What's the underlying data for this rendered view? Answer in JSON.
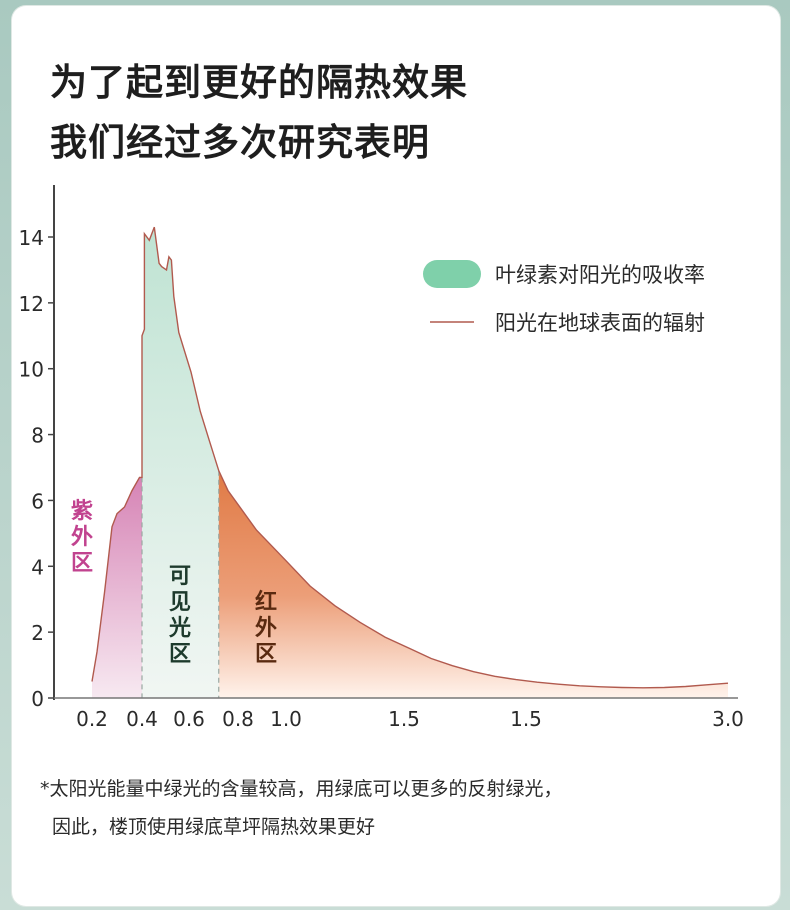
{
  "title": {
    "line1": "为了起到更好的隔热效果",
    "line2": "我们经过多次研究表明"
  },
  "footnote": {
    "line1": "*太阳光能量中绿光的含量较高，用绿底可以更多的反射绿光，",
    "line2": "因此，楼顶使用绿底草坪隔热效果更好"
  },
  "chart_data": {
    "type": "area",
    "title": "",
    "xlabel": "",
    "ylabel": "",
    "ylim": [
      0,
      15
    ],
    "y_ticks": [
      0,
      2,
      4,
      6,
      8,
      10,
      12,
      14
    ],
    "x_tick_labels": [
      "0.2",
      "0.4",
      "0.6",
      "0.8",
      "1.0",
      "1.5",
      "1.5",
      "3.0"
    ],
    "legend": {
      "placement": "top-right",
      "items": [
        {
          "label": "叶绿素对阳光的吸收率",
          "color": "#7fd0aa",
          "shape": "pill"
        },
        {
          "label": "阳光在地球表面的辐射",
          "color": "#b15a4e",
          "shape": "line"
        }
      ]
    },
    "regions": [
      {
        "label": "紫外区",
        "color": "#c1438f",
        "x_range": [
          0.2,
          0.4
        ]
      },
      {
        "label": "可见光区",
        "color": "#cde7dd",
        "x_range": [
          0.4,
          0.75
        ]
      },
      {
        "label": "红外区",
        "color": "#e07a45",
        "x_range": [
          0.75,
          3.0
        ]
      }
    ],
    "series": [
      {
        "name": "阳光在地球表面的辐射",
        "x": [
          0.2,
          0.22,
          0.25,
          0.28,
          0.3,
          0.33,
          0.36,
          0.39,
          0.4,
          0.4,
          0.41,
          0.41,
          0.43,
          0.45,
          0.47,
          0.48,
          0.5,
          0.51,
          0.52,
          0.53,
          0.55,
          0.6,
          0.65,
          0.7,
          0.75,
          0.8,
          0.9,
          1.0,
          1.1,
          1.2,
          1.3,
          1.4,
          1.5,
          1.6,
          1.7,
          1.8,
          1.9,
          2.0,
          2.1,
          2.2,
          2.3,
          2.4,
          2.5,
          2.6,
          2.7,
          2.8,
          2.9,
          3.0
        ],
        "y": [
          0.5,
          1.4,
          3.2,
          5.2,
          5.6,
          5.8,
          6.3,
          6.7,
          6.7,
          11.0,
          11.2,
          14.1,
          13.9,
          14.3,
          13.2,
          13.1,
          13.0,
          13.4,
          13.3,
          12.2,
          11.1,
          9.9,
          8.7,
          7.8,
          6.9,
          6.3,
          5.1,
          4.2,
          3.4,
          2.8,
          2.3,
          1.85,
          1.5,
          1.2,
          0.98,
          0.8,
          0.66,
          0.56,
          0.48,
          0.42,
          0.37,
          0.34,
          0.32,
          0.31,
          0.32,
          0.35,
          0.4,
          0.45
        ]
      }
    ]
  }
}
